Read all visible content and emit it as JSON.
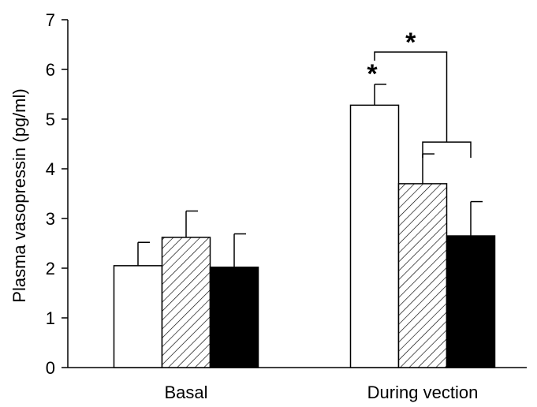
{
  "chart_data": {
    "type": "bar",
    "title": "",
    "xlabel": "",
    "ylabel": "Plasma vasopressin (pg/ml)",
    "ylim": [
      0,
      7
    ],
    "yticks": [
      "0",
      "1",
      "2",
      "3",
      "4",
      "5",
      "6",
      "7"
    ],
    "categories": [
      "Basal",
      "During vection"
    ],
    "series": [
      {
        "fill": "open",
        "color": "#ffffff",
        "values": [
          2.05,
          5.28
        ],
        "errors": [
          0.47,
          0.42
        ]
      },
      {
        "fill": "hatched",
        "color": "#ffffff",
        "values": [
          2.62,
          3.7
        ],
        "errors": [
          0.53,
          0.6
        ]
      },
      {
        "fill": "solid",
        "color": "#000000",
        "values": [
          2.02,
          2.65
        ],
        "errors": [
          0.67,
          0.69
        ]
      }
    ],
    "grid": false,
    "annotations": [
      {
        "text": "*",
        "category": 1,
        "series": 0,
        "target": "bar"
      },
      {
        "text": "*",
        "category": 1,
        "target": "bracket",
        "between": [
          [
            0
          ],
          [
            1,
            2
          ]
        ]
      }
    ]
  }
}
